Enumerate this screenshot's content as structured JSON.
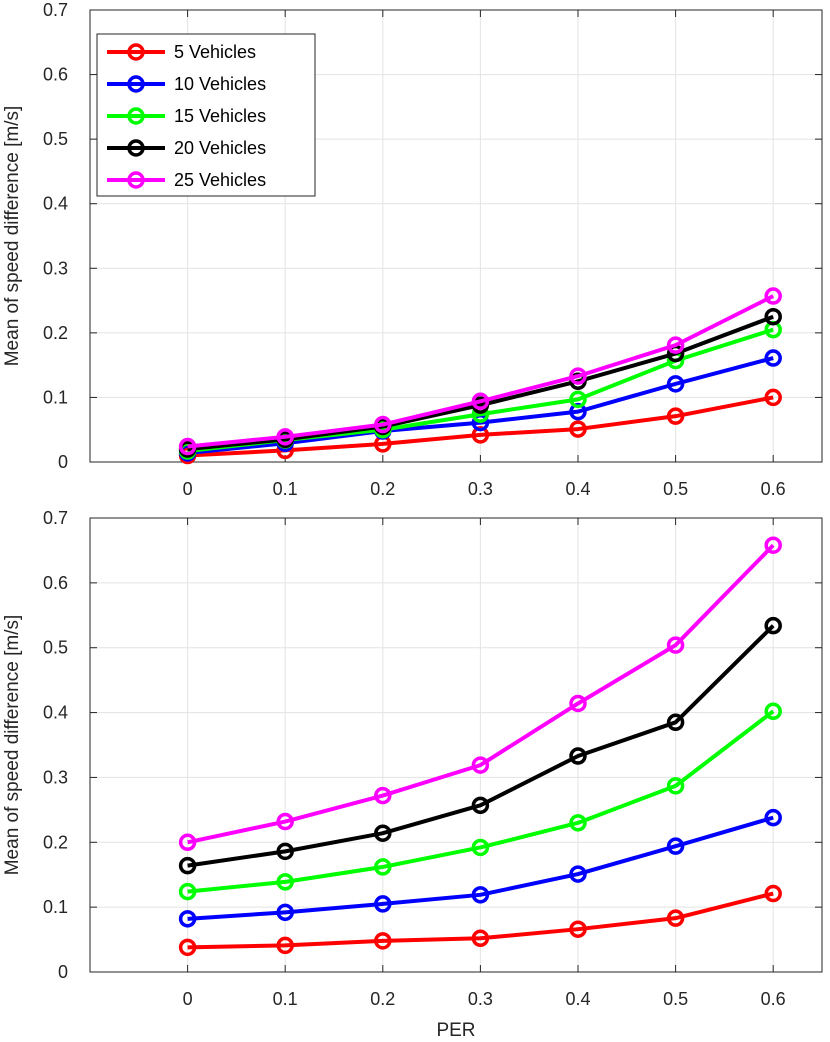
{
  "chart_data": [
    {
      "type": "line",
      "title": "",
      "xlabel": "",
      "ylabel": "Mean of speed difference [m/s]",
      "x": [
        0,
        0.1,
        0.2,
        0.3,
        0.4,
        0.5,
        0.6
      ],
      "x_tick_labels": [
        "0",
        "0.1",
        "0.2",
        "0.3",
        "0.4",
        "0.5",
        "0.6"
      ],
      "xlim": [
        -0.1,
        0.65
      ],
      "ylim": [
        0,
        0.7
      ],
      "y_tick_labels": [
        "0",
        "0.1",
        "0.2",
        "0.3",
        "0.4",
        "0.5",
        "0.6",
        "0.7"
      ],
      "grid": true,
      "legend": "top-left",
      "series": [
        {
          "name": "5 Vehicles",
          "color": "#ff0000",
          "values": [
            0.01,
            0.018,
            0.028,
            0.042,
            0.051,
            0.071,
            0.1
          ]
        },
        {
          "name": "10 Vehicles",
          "color": "#0000ff",
          "values": [
            0.014,
            0.029,
            0.048,
            0.061,
            0.078,
            0.121,
            0.161
          ]
        },
        {
          "name": "15 Vehicles",
          "color": "#00ff00",
          "values": [
            0.017,
            0.034,
            0.05,
            0.074,
            0.097,
            0.157,
            0.205
          ]
        },
        {
          "name": "20 Vehicles",
          "color": "#000000",
          "values": [
            0.02,
            0.035,
            0.055,
            0.088,
            0.125,
            0.168,
            0.225
          ]
        },
        {
          "name": "25 Vehicles",
          "color": "#ff00ff",
          "values": [
            0.024,
            0.039,
            0.058,
            0.094,
            0.133,
            0.181,
            0.257
          ]
        }
      ]
    },
    {
      "type": "line",
      "title": "",
      "xlabel": "PER",
      "ylabel": "Mean of speed difference [m/s]",
      "x": [
        0,
        0.1,
        0.2,
        0.3,
        0.4,
        0.5,
        0.6
      ],
      "x_tick_labels": [
        "0",
        "0.1",
        "0.2",
        "0.3",
        "0.4",
        "0.5",
        "0.6"
      ],
      "xlim": [
        -0.1,
        0.65
      ],
      "ylim": [
        0,
        0.7
      ],
      "y_tick_labels": [
        "0",
        "0.1",
        "0.2",
        "0.3",
        "0.4",
        "0.5",
        "0.6",
        "0.7"
      ],
      "grid": true,
      "legend": "none",
      "series": [
        {
          "name": "5 Vehicles",
          "color": "#ff0000",
          "values": [
            0.038,
            0.041,
            0.048,
            0.052,
            0.066,
            0.083,
            0.121
          ]
        },
        {
          "name": "10 Vehicles",
          "color": "#0000ff",
          "values": [
            0.082,
            0.092,
            0.105,
            0.119,
            0.151,
            0.194,
            0.238
          ]
        },
        {
          "name": "15 Vehicles",
          "color": "#00ff00",
          "values": [
            0.124,
            0.139,
            0.162,
            0.192,
            0.23,
            0.287,
            0.402
          ]
        },
        {
          "name": "20 Vehicles",
          "color": "#000000",
          "values": [
            0.164,
            0.186,
            0.214,
            0.257,
            0.333,
            0.385,
            0.534
          ]
        },
        {
          "name": "25 Vehicles",
          "color": "#ff00ff",
          "values": [
            0.2,
            0.232,
            0.272,
            0.319,
            0.414,
            0.504,
            0.658
          ]
        }
      ]
    }
  ]
}
